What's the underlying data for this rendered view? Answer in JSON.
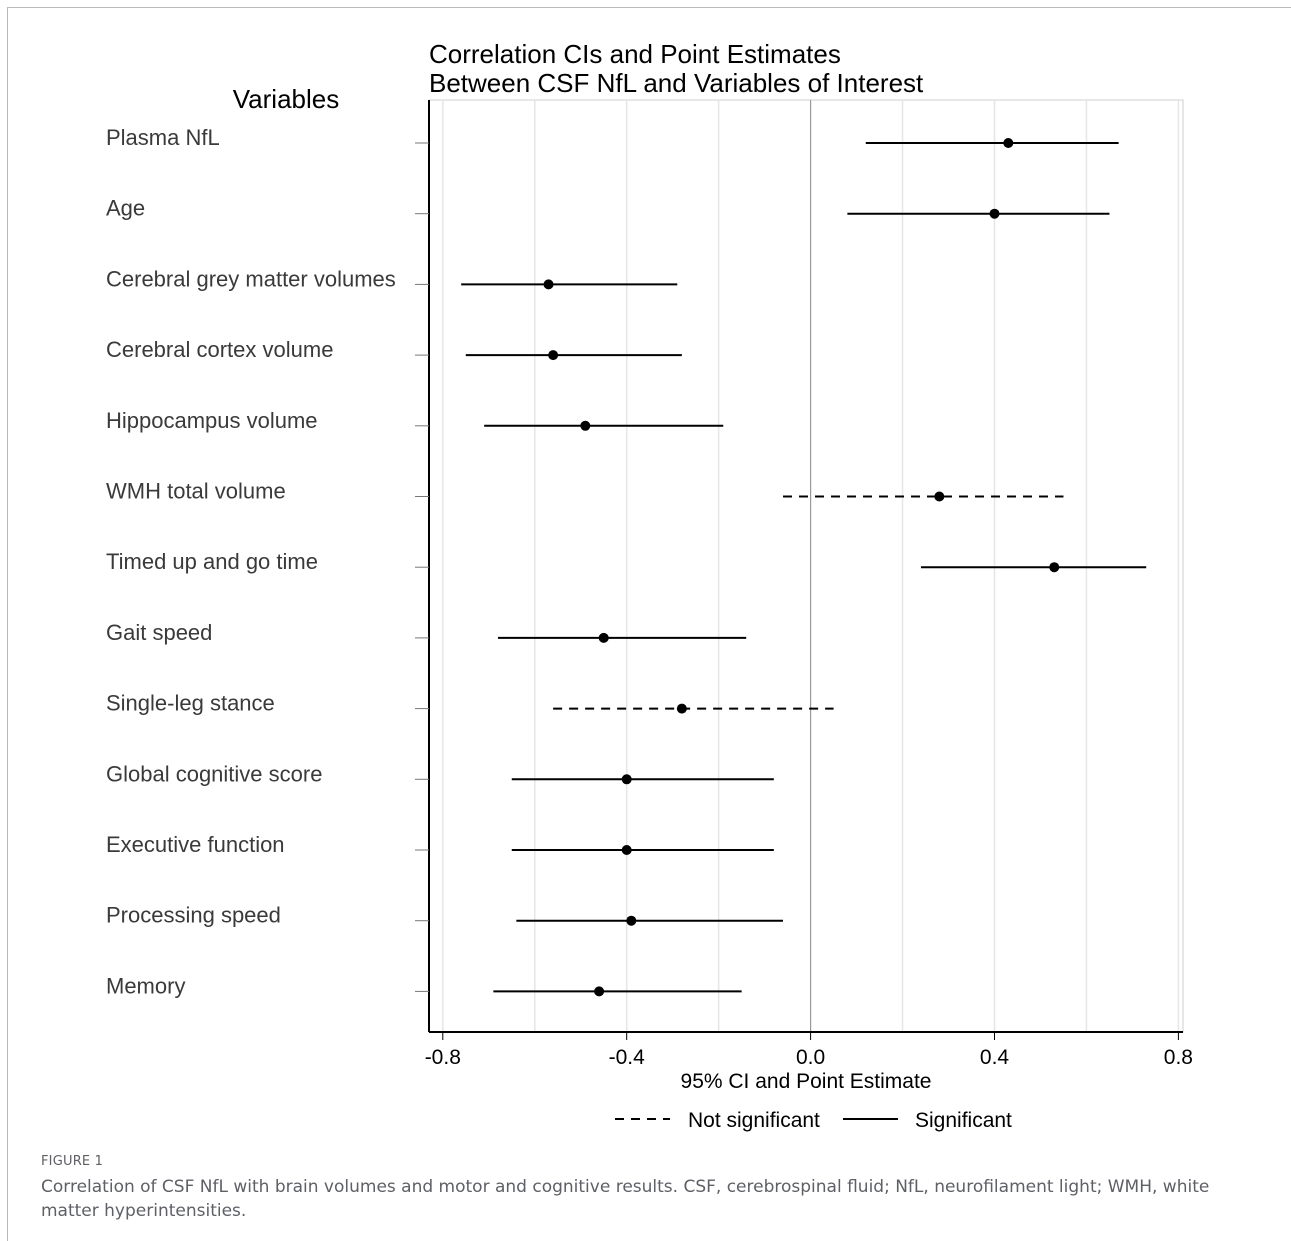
{
  "chart_data": {
    "type": "forest",
    "title_lines": [
      "Correlation CIs and Point Estimates",
      "Between CSF NfL and Variables of Interest"
    ],
    "row_header": "Variables",
    "xlabel": "95% CI and Point Estimate",
    "xlim": [
      -0.83,
      0.81
    ],
    "xticks": [
      -0.8,
      -0.4,
      0.0,
      0.4,
      0.8
    ],
    "xtick_labels": [
      "-0.8",
      "-0.4",
      "0.0",
      "0.4",
      "0.8"
    ],
    "minor_gridlines": [
      -0.6,
      -0.2,
      0.2,
      0.6
    ],
    "grid": true,
    "reference_line": 0.0,
    "legend_position": "bottom",
    "legend": [
      {
        "key": "not_significant",
        "label": "Not significant",
        "style": "dashed"
      },
      {
        "key": "significant",
        "label": "Significant",
        "style": "solid"
      }
    ],
    "rows": [
      {
        "label": "Plasma NfL",
        "estimate": 0.43,
        "lower": 0.12,
        "upper": 0.67,
        "significant": true
      },
      {
        "label": "Age",
        "estimate": 0.4,
        "lower": 0.08,
        "upper": 0.65,
        "significant": true
      },
      {
        "label": "Cerebral grey matter volumes",
        "estimate": -0.57,
        "lower": -0.76,
        "upper": -0.29,
        "significant": true
      },
      {
        "label": "Cerebral cortex volume",
        "estimate": -0.56,
        "lower": -0.75,
        "upper": -0.28,
        "significant": true
      },
      {
        "label": "Hippocampus volume",
        "estimate": -0.49,
        "lower": -0.71,
        "upper": -0.19,
        "significant": true
      },
      {
        "label": "WMH total volume",
        "estimate": 0.28,
        "lower": -0.06,
        "upper": 0.55,
        "significant": false
      },
      {
        "label": "Timed up and go time",
        "estimate": 0.53,
        "lower": 0.24,
        "upper": 0.73,
        "significant": true
      },
      {
        "label": "Gait speed",
        "estimate": -0.45,
        "lower": -0.68,
        "upper": -0.14,
        "significant": true
      },
      {
        "label": "Single-leg stance",
        "estimate": -0.28,
        "lower": -0.56,
        "upper": 0.05,
        "significant": false
      },
      {
        "label": "Global cognitive score",
        "estimate": -0.4,
        "lower": -0.65,
        "upper": -0.08,
        "significant": true
      },
      {
        "label": "Executive function",
        "estimate": -0.4,
        "lower": -0.65,
        "upper": -0.08,
        "significant": true
      },
      {
        "label": "Processing speed",
        "estimate": -0.39,
        "lower": -0.64,
        "upper": -0.06,
        "significant": true
      },
      {
        "label": "Memory",
        "estimate": -0.46,
        "lower": -0.69,
        "upper": -0.15,
        "significant": true
      }
    ]
  },
  "caption": {
    "label": "FIGURE 1",
    "text": "Correlation of CSF NfL with brain volumes and motor and cognitive results. CSF, cerebrospinal fluid; NfL, neurofilament light; WMH, white matter hyperintensities."
  },
  "colors": {
    "ink": "#000000",
    "gridline": "#e6e6e6",
    "reference_line": "#9a9a9a",
    "row_label": "#3a3a3a",
    "caption": "#5e6066"
  }
}
